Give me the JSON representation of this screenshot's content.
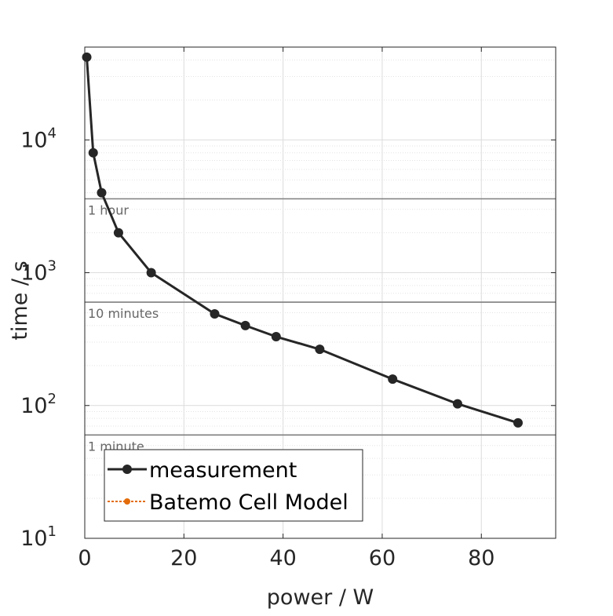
{
  "chart_data": {
    "type": "line",
    "xlabel": "power / W",
    "ylabel": "time / s",
    "xlim": [
      0,
      95
    ],
    "ylim": [
      10,
      50000
    ],
    "yscale": "log",
    "x_ticks": [
      {
        "value": 0,
        "label": "0"
      },
      {
        "value": 20,
        "label": "20"
      },
      {
        "value": 40,
        "label": "40"
      },
      {
        "value": 60,
        "label": "60"
      },
      {
        "value": 80,
        "label": "80"
      }
    ],
    "y_ticks": [
      {
        "value": 10,
        "base": "10",
        "exp": "1"
      },
      {
        "value": 100,
        "base": "10",
        "exp": "2"
      },
      {
        "value": 1000,
        "base": "10",
        "exp": "3"
      },
      {
        "value": 10000,
        "base": "10",
        "exp": "4"
      }
    ],
    "grid": true,
    "reference_lines": [
      {
        "y": 3600,
        "label": "1 hour"
      },
      {
        "y": 600,
        "label": "10 minutes"
      },
      {
        "y": 60,
        "label": "1 minute"
      }
    ],
    "series": [
      {
        "name": "measurement",
        "color": "#262626",
        "x": [
          0.4,
          1.7,
          3.4,
          6.8,
          13.4,
          26.2,
          32.4,
          38.6,
          47.4,
          62.1,
          75.2,
          87.4
        ],
        "y": [
          42000,
          8000,
          4000,
          2000,
          1000,
          490,
          400,
          330,
          265,
          158,
          103,
          74
        ]
      },
      {
        "name": "Batemo Cell Model",
        "color": "#e36c0a",
        "x": [],
        "y": []
      }
    ],
    "legend_position": "bottom-left"
  }
}
